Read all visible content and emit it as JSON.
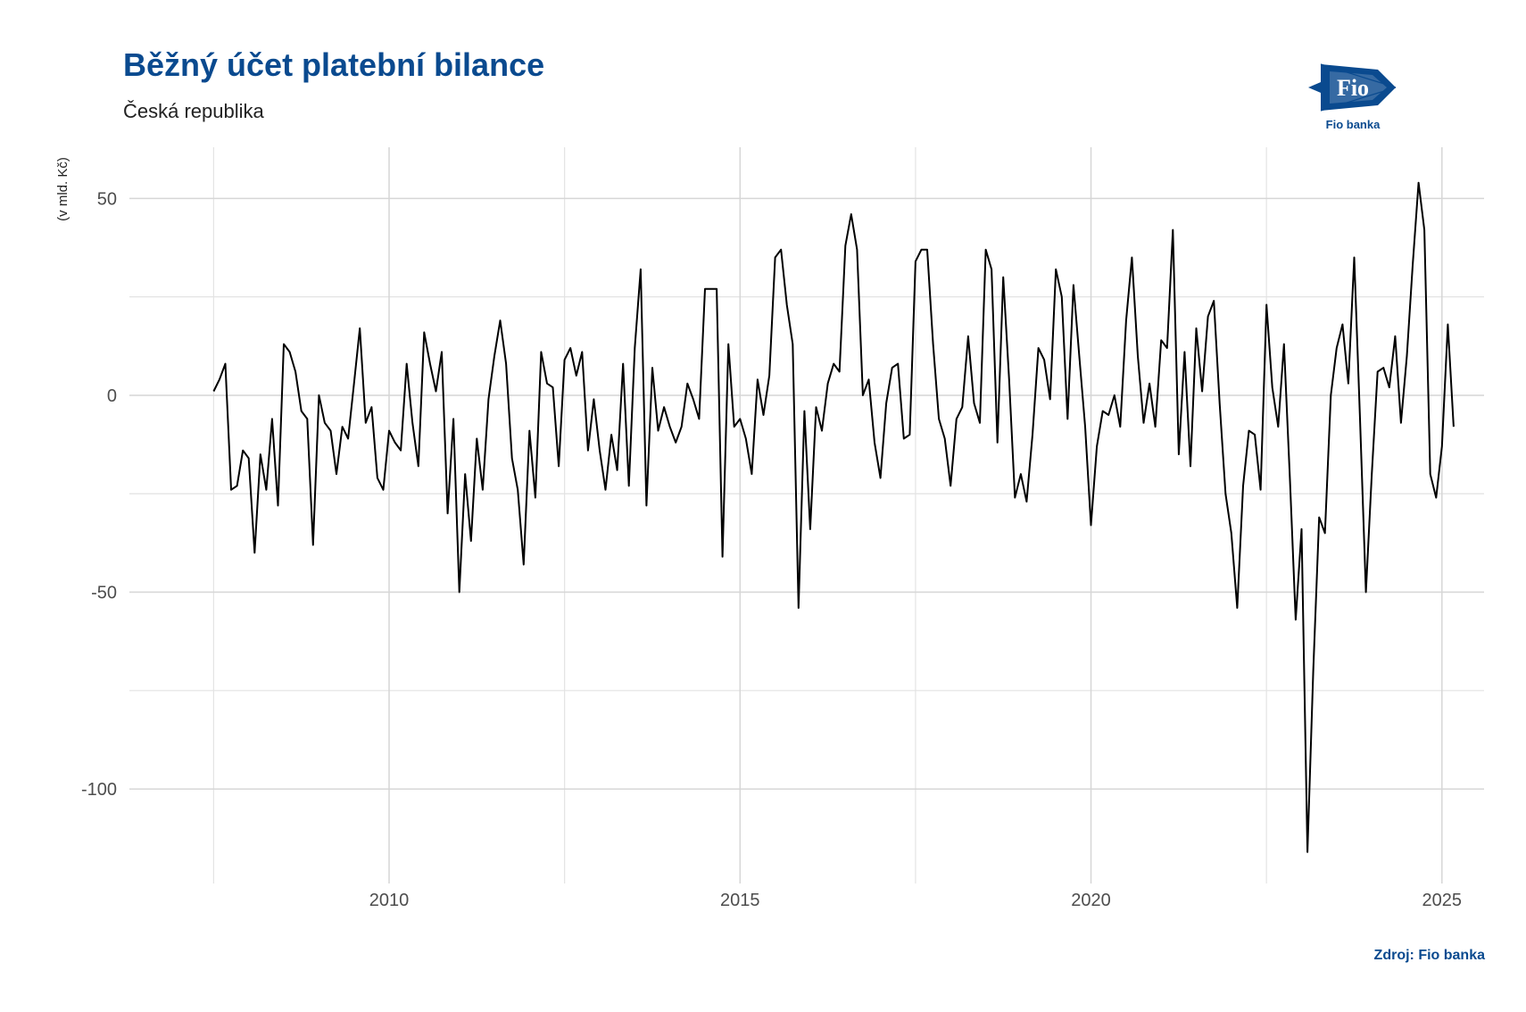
{
  "header": {
    "title": "Běžný účet platební bilance",
    "subtitle": "Česká republika"
  },
  "logo": {
    "text": "Fio banka",
    "mark": "Fio"
  },
  "footer": {
    "source": "Zdroj: Fio banka"
  },
  "chart_data": {
    "type": "line",
    "title": "Běžný účet platební bilance",
    "subtitle": "Česká republika",
    "xlabel": "",
    "ylabel": "(v mld. Kč)",
    "xlim": [
      2006.3,
      2025.6
    ],
    "ylim": [
      -124,
      63
    ],
    "x_ticks": [
      2010,
      2015,
      2020,
      2025
    ],
    "x_tick_labels": [
      "2010",
      "2015",
      "2020",
      "2025"
    ],
    "y_ticks": [
      -100,
      -50,
      0,
      50
    ],
    "y_tick_labels": [
      "-100",
      "-50",
      "0",
      "50"
    ],
    "x_minor_ticks": [
      2007.5,
      2012.5,
      2017.5,
      2022.5
    ],
    "y_minor_ticks": [
      -75,
      -25,
      25
    ],
    "grid": true,
    "line_color": "#000000",
    "x_start": 2007.5,
    "x_step_months": 1,
    "values": [
      1,
      4,
      8,
      -24,
      -23,
      -14,
      -16,
      -40,
      -15,
      -24,
      -6,
      -28,
      13,
      11,
      6,
      -4,
      -6,
      -38,
      0,
      -7,
      -9,
      -20,
      -8,
      -11,
      3,
      17,
      -7,
      -3,
      -21,
      -24,
      -9,
      -12,
      -14,
      8,
      -7,
      -18,
      16,
      8,
      1,
      11,
      -30,
      -6,
      -50,
      -20,
      -37,
      -11,
      -24,
      -1,
      10,
      19,
      8,
      -16,
      -24,
      -43,
      -9,
      -26,
      11,
      3,
      2,
      -18,
      9,
      12,
      5,
      11,
      -14,
      -1,
      -14,
      -24,
      -10,
      -19,
      8,
      -23,
      12,
      32,
      -28,
      7,
      -9,
      -3,
      -8,
      -12,
      -8,
      3,
      -1,
      -6,
      27,
      27,
      27,
      -41,
      13,
      -8,
      -6,
      -11,
      -20,
      4,
      -5,
      5,
      35,
      37,
      23,
      13,
      -54,
      -4,
      -34,
      -3,
      -9,
      3,
      8,
      6,
      38,
      46,
      37,
      0,
      4,
      -12,
      -21,
      -2,
      7,
      8,
      -11,
      -10,
      34,
      37,
      37,
      13,
      -6,
      -11,
      -23,
      -6,
      -3,
      15,
      -2,
      -7,
      37,
      32,
      -12,
      30,
      4,
      -26,
      -20,
      -27,
      -10,
      12,
      9,
      -1,
      32,
      25,
      -6,
      28,
      10,
      -8,
      -33,
      -13,
      -4,
      -5,
      0,
      -8,
      19,
      35,
      10,
      -7,
      3,
      -8,
      14,
      12,
      42,
      -15,
      11,
      -18,
      17,
      1,
      20,
      24,
      -2,
      -25,
      -35,
      -54,
      -23,
      -9,
      -10,
      -24,
      23,
      2,
      -8,
      13,
      -21,
      -57,
      -34,
      -116,
      -70,
      -31,
      -35,
      0,
      12,
      18,
      3,
      35,
      -6,
      -50,
      -20,
      6,
      7,
      2,
      15,
      -7,
      10,
      33,
      54,
      42,
      -20,
      -26,
      -13,
      18,
      -8
    ]
  }
}
